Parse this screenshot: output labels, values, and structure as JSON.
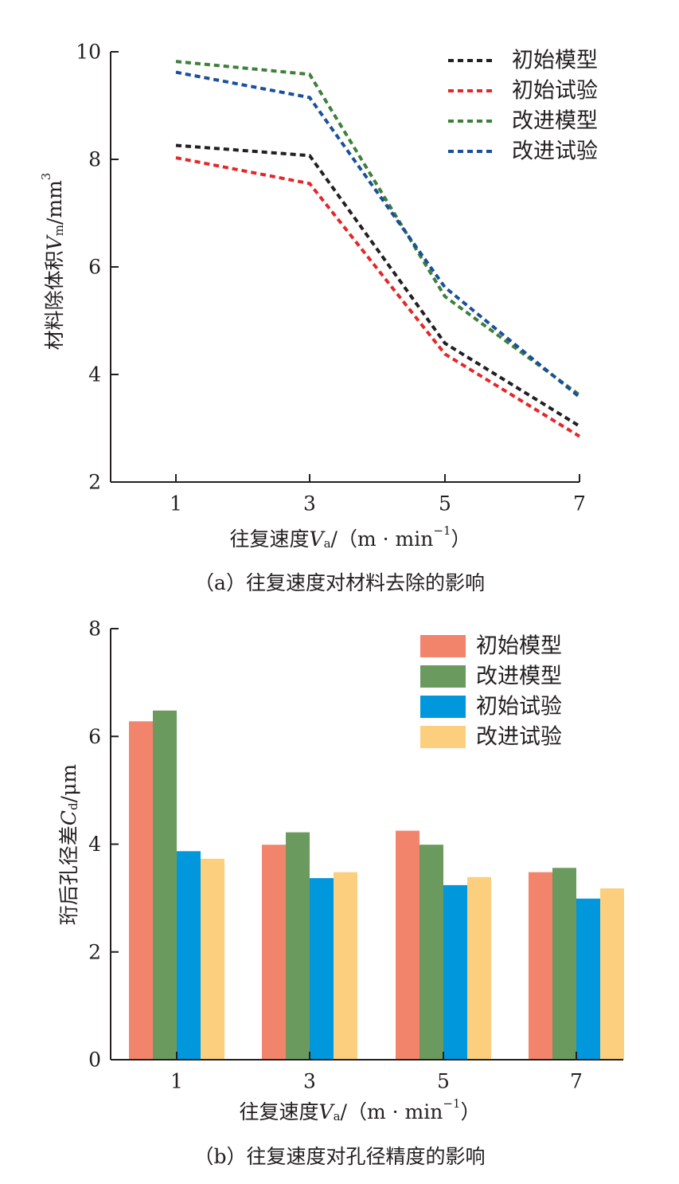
{
  "chart_data": [
    {
      "type": "line",
      "ylabel": "材料除体积",
      "ylabel_symbol": "V",
      "ylabel_sub": "m",
      "ylabel_unit": "/mm",
      "ylabel_sup": "3",
      "xlabel": "往复速度",
      "xlabel_symbol": "V",
      "xlabel_sub": "a",
      "xlabel_unit": "/（m · min",
      "xlabel_sup": "−1",
      "xlabel_close": "）",
      "x": [
        1,
        3,
        5,
        7
      ],
      "ylim": [
        2,
        10
      ],
      "yticks": [
        2,
        4,
        6,
        8,
        10
      ],
      "grid": false,
      "legend_position": "top-right",
      "series": [
        {
          "name": "初始模型",
          "color": "#231f20",
          "dash": "dotted",
          "values": [
            8.26,
            8.07,
            4.58,
            3.04
          ]
        },
        {
          "name": "初始试验",
          "color": "#e3272b",
          "dash": "dotted",
          "values": [
            8.03,
            7.55,
            4.38,
            2.85
          ]
        },
        {
          "name": "改进模型",
          "color": "#3e7f3a",
          "dash": "dotted",
          "values": [
            9.82,
            9.58,
            5.45,
            3.62
          ]
        },
        {
          "name": "改进试验",
          "color": "#1b4f9c",
          "dash": "dotted",
          "values": [
            9.62,
            9.15,
            5.62,
            3.58
          ]
        }
      ],
      "caption": "（a）往复速度对材料去除的影响"
    },
    {
      "type": "bar",
      "ylabel": "珩后孔径差",
      "ylabel_symbol": "C",
      "ylabel_sub": "d",
      "ylabel_unit": "/μm",
      "xlabel": "往复速度",
      "xlabel_symbol": "V",
      "xlabel_sub": "a",
      "xlabel_unit": "/（m · min",
      "xlabel_sup": "−1",
      "xlabel_close": "）",
      "categories": [
        "1",
        "3",
        "5",
        "7"
      ],
      "ylim": [
        0,
        8
      ],
      "yticks": [
        0,
        2,
        4,
        6,
        8
      ],
      "grid": false,
      "legend_position": "top-right",
      "legend_order": [
        0,
        1,
        2,
        3
      ],
      "series": [
        {
          "name": "初始模型",
          "color": "#f1846a",
          "values": [
            6.28,
            3.99,
            4.25,
            3.48
          ]
        },
        {
          "name": "改进模型",
          "color": "#6a9a5d",
          "values": [
            6.48,
            4.22,
            3.99,
            3.56
          ]
        },
        {
          "name": "初始试验",
          "color": "#0097dc",
          "values": [
            3.87,
            3.37,
            3.24,
            2.99
          ]
        },
        {
          "name": "改进试验",
          "color": "#fccf7e",
          "values": [
            3.73,
            3.48,
            3.39,
            3.18
          ]
        }
      ],
      "caption": "（b）往复速度对孔径精度的影响"
    }
  ]
}
